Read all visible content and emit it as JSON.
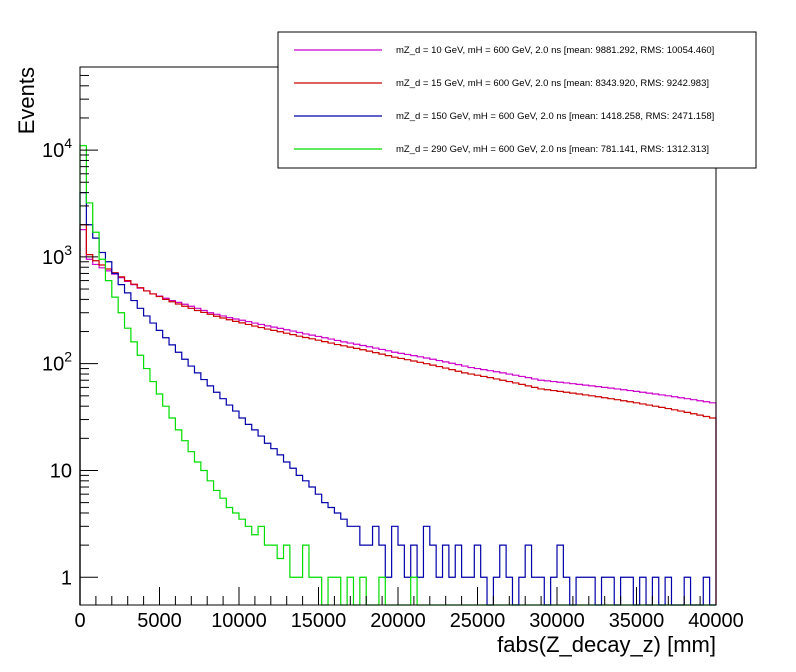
{
  "chart_data": {
    "type": "histogram-step",
    "xlabel": "fabs(Z_decay_z) [mm]",
    "ylabel": "Events",
    "xlim": [
      0,
      40000
    ],
    "ylim": [
      0.55,
      60000
    ],
    "yscale": "log",
    "bin_width": 400,
    "x_ticks": [
      0,
      5000,
      10000,
      15000,
      20000,
      25000,
      30000,
      35000,
      40000
    ],
    "x_tick_labels": [
      "0",
      "5000",
      "10000",
      "15000",
      "20000",
      "25000",
      "30000",
      "35000",
      "40000"
    ],
    "y_ticks": [
      {
        "value": 1,
        "base": "1",
        "exp": ""
      },
      {
        "value": 10,
        "base": "10",
        "exp": ""
      },
      {
        "value": 100,
        "base": "10",
        "exp": "2"
      },
      {
        "value": 1000,
        "base": "10",
        "exp": "3"
      },
      {
        "value": 10000,
        "base": "10",
        "exp": "4"
      }
    ],
    "legend": {
      "position": "top-right"
    },
    "series": [
      {
        "name": "mZ_d = 10 GeV, mH = 600 GeV, 2.0 ns [mean: 9881.292, RMS: 10054.460]",
        "color": "#cc00cc",
        "values": [
          1800,
          950,
          850,
          790,
          740,
          690,
          640,
          590,
          550,
          510,
          480,
          450,
          430,
          410,
          390,
          375,
          360,
          345,
          330,
          315,
          300,
          290,
          280,
          270,
          262,
          255,
          248,
          240,
          233,
          226,
          220,
          214,
          208,
          202,
          196,
          190,
          185,
          180,
          175,
          170,
          165,
          160,
          156,
          152,
          148,
          144,
          140,
          136,
          132,
          128,
          125,
          122,
          119,
          116,
          113,
          110,
          107,
          104,
          101,
          98,
          95,
          92,
          90,
          88,
          86,
          84,
          82,
          80,
          78,
          76,
          74,
          72,
          70,
          69,
          68,
          67,
          66,
          65,
          64,
          63,
          62,
          61,
          60,
          59,
          58,
          57,
          56,
          55,
          54,
          53,
          52,
          51,
          50,
          49,
          48,
          47,
          46,
          45,
          44,
          43
        ]
      },
      {
        "name": "mZ_d = 15 GeV, mH = 600 GeV, 2.0 ns [mean: 8343.920, RMS: 9242.983]",
        "color": "#cc0000",
        "values": [
          2000,
          1050,
          920,
          840,
          770,
          710,
          650,
          600,
          555,
          515,
          480,
          450,
          425,
          400,
          380,
          362,
          345,
          330,
          315,
          302,
          290,
          278,
          268,
          258,
          249,
          241,
          233,
          225,
          218,
          211,
          205,
          199,
          193,
          187,
          181,
          176,
          171,
          166,
          161,
          156,
          151,
          147,
          143,
          139,
          135,
          131,
          127,
          123,
          119,
          115,
          112,
          109,
          106,
          103,
          100,
          97,
          94,
          91,
          88,
          85,
          82,
          80,
          78,
          76,
          74,
          72,
          70,
          68,
          66,
          64,
          62,
          60,
          58,
          57,
          56,
          55,
          54,
          53,
          52,
          51,
          50,
          49,
          48,
          47,
          46,
          45,
          44,
          43,
          42,
          41,
          40,
          39,
          38,
          37,
          36,
          35,
          34,
          33,
          32,
          31
        ]
      },
      {
        "name": "mZ_d = 150 GeV, mH = 600 GeV, 2.0 ns [mean: 1418.258, RMS: 2471.158]",
        "color": "#0000aa",
        "values": [
          4000,
          2000,
          1500,
          1100,
          900,
          700,
          550,
          460,
          390,
          330,
          280,
          240,
          205,
          175,
          150,
          128,
          110,
          95,
          82,
          71,
          62,
          54,
          47,
          41,
          36,
          31,
          27,
          24,
          21,
          18,
          16,
          14,
          12,
          10.5,
          9,
          8,
          7,
          6,
          5,
          4.5,
          4,
          3.5,
          3,
          3,
          2,
          2,
          3,
          2,
          1,
          3,
          2,
          1,
          2,
          1,
          3,
          2,
          1,
          2,
          1,
          2,
          1,
          1,
          2,
          1,
          0,
          1,
          2,
          1,
          0,
          1,
          2,
          1,
          1,
          0,
          1,
          2,
          1,
          0,
          1,
          1,
          1,
          0,
          1,
          1,
          0,
          1,
          1,
          0,
          1,
          0,
          1,
          0,
          1,
          0,
          0,
          1,
          0,
          0,
          1,
          0
        ]
      },
      {
        "name": "mZ_d = 290 GeV, mH = 600 GeV, 2.0 ns [mean: 781.141, RMS: 1312.313]",
        "color": "#00dd00",
        "values": [
          11000,
          3200,
          1700,
          950,
          600,
          420,
          300,
          215,
          160,
          120,
          90,
          68,
          52,
          40,
          31,
          24,
          19,
          15,
          12,
          10,
          8,
          6.5,
          5.5,
          4.5,
          4,
          3.5,
          3,
          2.5,
          3,
          2,
          2,
          1.5,
          2,
          1,
          1,
          2,
          1,
          1,
          0,
          1,
          1,
          0,
          1,
          0,
          1,
          0,
          0,
          1,
          0,
          0,
          0,
          0,
          1,
          0,
          0,
          0,
          0,
          0,
          0,
          0,
          0,
          0,
          0,
          0,
          0,
          0,
          0,
          0,
          0,
          0,
          0,
          0,
          0,
          0,
          0,
          0,
          0,
          0,
          0,
          0,
          0,
          0,
          0,
          0,
          0,
          0,
          0,
          0,
          0,
          0,
          0,
          0,
          0,
          0,
          0,
          0,
          0,
          0,
          0,
          0
        ]
      }
    ]
  }
}
